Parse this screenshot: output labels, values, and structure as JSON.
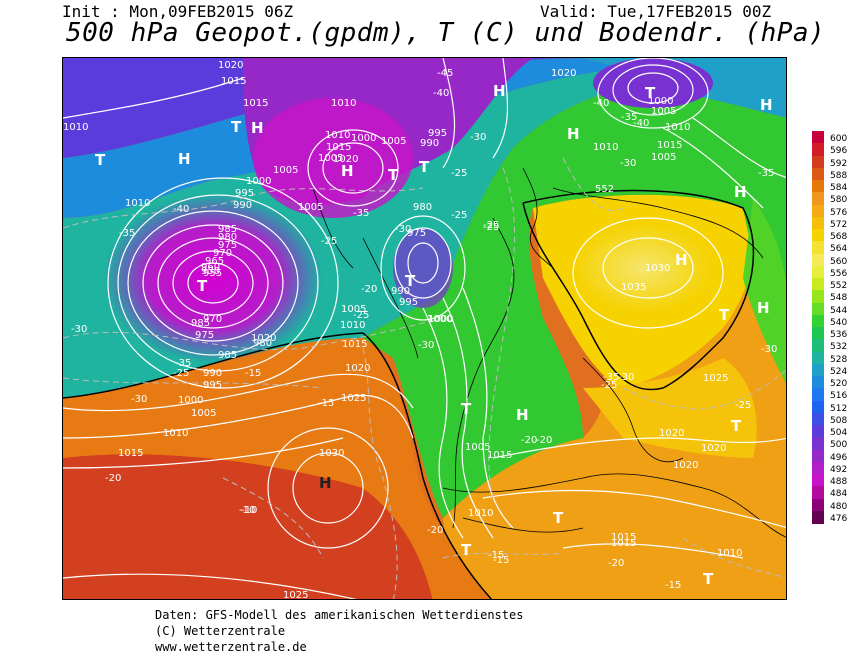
{
  "header": {
    "init": "Init : Mon,09FEB2015 06Z",
    "valid": "Valid: Tue,17FEB2015 00Z",
    "title": "500 hPa Geopot.(gpdm), T (C) und Bodendr. (hPa)"
  },
  "legend": {
    "ticks": [
      "600",
      "596",
      "592",
      "588",
      "584",
      "580",
      "576",
      "572",
      "568",
      "564",
      "560",
      "556",
      "552",
      "548",
      "544",
      "540",
      "536",
      "532",
      "528",
      "524",
      "520",
      "516",
      "512",
      "508",
      "504",
      "500",
      "496",
      "492",
      "488",
      "484",
      "480",
      "476"
    ],
    "colors": [
      "#c8003c",
      "#d21e28",
      "#d23c1e",
      "#dc5a14",
      "#e6780a",
      "#f0961e",
      "#f5aa14",
      "#f5be0a",
      "#f5d200",
      "#f5e132",
      "#f5eb5a",
      "#e6f03c",
      "#c8eb1e",
      "#96e61e",
      "#64dc28",
      "#32d232",
      "#1ec850",
      "#1ebe78",
      "#1eb4a0",
      "#1ea0c8",
      "#1e8cdc",
      "#1e78f0",
      "#1e64f0",
      "#3c50e6",
      "#5a3cdc",
      "#7832d2",
      "#9628c8",
      "#b41ec8",
      "#c814c8",
      "#b40aa0",
      "#8c0078",
      "#640050"
    ]
  },
  "map_labels": {
    "pressure": [
      "1020",
      "1015",
      "1015",
      "1010",
      "1010",
      "1005",
      "1005",
      "1010",
      "1000",
      "1005",
      "1015",
      "1020",
      "1005",
      "1000",
      "995",
      "990",
      "995",
      "990",
      "985",
      "980",
      "975",
      "970",
      "965",
      "960",
      "955",
      "950",
      "985",
      "980",
      "975",
      "990",
      "995",
      "1000",
      "1005",
      "1010",
      "1015",
      "1020",
      "1025",
      "1030",
      "1020",
      "1015",
      "1010",
      "1005",
      "1000",
      "995",
      "990",
      "985",
      "980",
      "975",
      "970",
      "1005",
      "1010",
      "1015",
      "1020",
      "1030",
      "1035",
      "1025",
      "1020",
      "1015",
      "1010",
      "1005",
      "1000",
      "1020",
      "1015",
      "1010",
      "1005",
      "1000",
      "1010",
      "1015",
      "1020",
      "1025",
      "1010",
      "1015"
    ],
    "temperature": [
      "-45",
      "-40",
      "-40",
      "-35",
      "-30",
      "-25",
      "-35",
      "-40",
      "-30",
      "-25",
      "-20",
      "-25",
      "-30",
      "-35",
      "-30",
      "-25",
      "-20",
      "-15",
      "-10",
      "-15",
      "-20",
      "-25",
      "-30",
      "-35",
      "-40",
      "-30",
      "-25",
      "-20",
      "-15",
      "-10",
      "-30",
      "-25",
      "-35",
      "-30",
      "-25",
      "-20",
      "-15",
      "-25",
      "-20",
      "-15",
      "-35"
    ],
    "highs_lows": [
      "H",
      "H",
      "H",
      "H",
      "H",
      "H",
      "H",
      "H",
      "H",
      "H",
      "T",
      "T",
      "T",
      "T",
      "T",
      "T",
      "T",
      "T",
      "T",
      "T",
      "T",
      "T",
      "T"
    ],
    "contour_552": "552"
  },
  "footer": {
    "line1": "Daten: GFS-Modell des amerikanischen Wetterdienstes",
    "line2": "(C) Wetterzentrale",
    "line3": "www.wetterzentrale.de"
  }
}
